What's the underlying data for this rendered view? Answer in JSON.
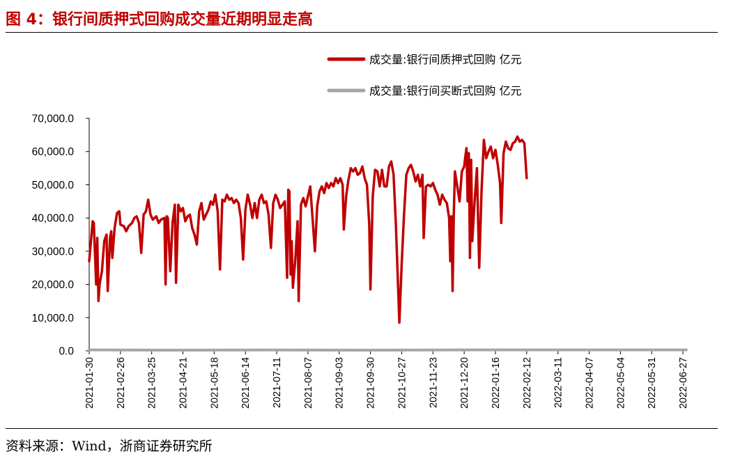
{
  "title": "图 4：银行间质押式回购成交量近期明显走高",
  "source": "资料来源：Wind，浙商证券研究所",
  "chart_data": {
    "type": "line",
    "ylim": [
      0,
      70000
    ],
    "yticks": [
      0,
      10000,
      20000,
      30000,
      40000,
      50000,
      60000,
      70000
    ],
    "ytick_labels": [
      "0.0",
      "10,000.0",
      "20,000.0",
      "30,000.0",
      "40,000.0",
      "50,000.0",
      "60,000.0",
      "70,000.0"
    ],
    "xlim": [
      "2021-01-30",
      "2022-06-30"
    ],
    "xtick_labels": [
      "2021-01-30",
      "2021-02-26",
      "2021-03-25",
      "2021-04-21",
      "2021-05-18",
      "2021-06-14",
      "2021-07-11",
      "2021-08-07",
      "2021-09-03",
      "2021-09-30",
      "2021-10-27",
      "2021-11-23",
      "2021-12-20",
      "2022-01-16",
      "2022-02-12",
      "2022-03-11",
      "2022-04-07",
      "2022-05-04",
      "2022-05-31",
      "2022-06-27"
    ],
    "legend_position": "top-right",
    "series": [
      {
        "name": "成交量:银行间质押式回购 亿元",
        "color": "#c00000",
        "points": [
          [
            "2021-01-30",
            27000
          ],
          [
            "2021-02-02",
            39000
          ],
          [
            "2021-02-03",
            38500
          ],
          [
            "2021-02-05",
            20000
          ],
          [
            "2021-02-06",
            34000
          ],
          [
            "2021-02-07",
            15000
          ],
          [
            "2021-02-08",
            20000
          ],
          [
            "2021-02-10",
            24000
          ],
          [
            "2021-02-12",
            33000
          ],
          [
            "2021-02-14",
            35000
          ],
          [
            "2021-02-15",
            18000
          ],
          [
            "2021-02-17",
            34000
          ],
          [
            "2021-02-18",
            36000
          ],
          [
            "2021-02-19",
            28000
          ],
          [
            "2021-02-21",
            37000
          ],
          [
            "2021-02-23",
            41500
          ],
          [
            "2021-02-25",
            42000
          ],
          [
            "2021-02-26",
            38000
          ],
          [
            "2021-03-01",
            37500
          ],
          [
            "2021-03-03",
            36000
          ],
          [
            "2021-03-05",
            37500
          ],
          [
            "2021-03-08",
            38500
          ],
          [
            "2021-03-10",
            40000
          ],
          [
            "2021-03-12",
            40500
          ],
          [
            "2021-03-14",
            38500
          ],
          [
            "2021-03-16",
            29500
          ],
          [
            "2021-03-18",
            41000
          ],
          [
            "2021-03-20",
            42000
          ],
          [
            "2021-03-22",
            45500
          ],
          [
            "2021-03-24",
            41000
          ],
          [
            "2021-03-26",
            39500
          ],
          [
            "2021-03-29",
            40500
          ],
          [
            "2021-03-31",
            38500
          ],
          [
            "2021-04-02",
            39500
          ],
          [
            "2021-04-05",
            40000
          ],
          [
            "2021-04-06",
            20000
          ],
          [
            "2021-04-07",
            40500
          ],
          [
            "2021-04-08",
            40000
          ],
          [
            "2021-04-10",
            24000
          ],
          [
            "2021-04-12",
            38500
          ],
          [
            "2021-04-14",
            44000
          ],
          [
            "2021-04-15",
            20500
          ],
          [
            "2021-04-17",
            44000
          ],
          [
            "2021-04-19",
            42000
          ],
          [
            "2021-04-21",
            43000
          ],
          [
            "2021-04-23",
            39000
          ],
          [
            "2021-04-25",
            40500
          ],
          [
            "2021-04-27",
            41000
          ],
          [
            "2021-04-29",
            37000
          ],
          [
            "2021-05-01",
            35000
          ],
          [
            "2021-05-03",
            32000
          ],
          [
            "2021-05-05",
            42000
          ],
          [
            "2021-05-07",
            44500
          ],
          [
            "2021-05-09",
            39500
          ],
          [
            "2021-05-11",
            41000
          ],
          [
            "2021-05-13",
            42500
          ],
          [
            "2021-05-15",
            45000
          ],
          [
            "2021-05-17",
            44000
          ],
          [
            "2021-05-19",
            47000
          ],
          [
            "2021-05-21",
            42000
          ],
          [
            "2021-05-23",
            24500
          ],
          [
            "2021-05-25",
            45500
          ],
          [
            "2021-05-27",
            45000
          ],
          [
            "2021-05-29",
            47000
          ],
          [
            "2021-05-31",
            45500
          ],
          [
            "2021-06-02",
            46000
          ],
          [
            "2021-06-04",
            44500
          ],
          [
            "2021-06-06",
            45500
          ],
          [
            "2021-06-08",
            44500
          ],
          [
            "2021-06-10",
            40000
          ],
          [
            "2021-06-12",
            27500
          ],
          [
            "2021-06-14",
            42500
          ],
          [
            "2021-06-16",
            47000
          ],
          [
            "2021-06-18",
            44000
          ],
          [
            "2021-06-20",
            40000
          ],
          [
            "2021-06-22",
            44500
          ],
          [
            "2021-06-24",
            40000
          ],
          [
            "2021-06-26",
            45500
          ],
          [
            "2021-06-28",
            47000
          ],
          [
            "2021-06-30",
            44500
          ],
          [
            "2021-07-02",
            45000
          ],
          [
            "2021-07-04",
            41000
          ],
          [
            "2021-07-06",
            31000
          ],
          [
            "2021-07-08",
            44500
          ],
          [
            "2021-07-10",
            47000
          ],
          [
            "2021-07-12",
            45500
          ],
          [
            "2021-07-14",
            43000
          ],
          [
            "2021-07-16",
            44000
          ],
          [
            "2021-07-18",
            45000
          ],
          [
            "2021-07-20",
            22000
          ],
          [
            "2021-07-21",
            48500
          ],
          [
            "2021-07-22",
            48000
          ],
          [
            "2021-07-23",
            23000
          ],
          [
            "2021-07-24",
            33000
          ],
          [
            "2021-07-25",
            19000
          ],
          [
            "2021-07-27",
            27000
          ],
          [
            "2021-07-29",
            39000
          ],
          [
            "2021-07-30",
            15000
          ],
          [
            "2021-08-01",
            44000
          ],
          [
            "2021-08-03",
            46000
          ],
          [
            "2021-08-05",
            43500
          ],
          [
            "2021-08-07",
            46500
          ],
          [
            "2021-08-09",
            49500
          ],
          [
            "2021-08-11",
            40000
          ],
          [
            "2021-08-13",
            30000
          ],
          [
            "2021-08-15",
            43500
          ],
          [
            "2021-08-17",
            48000
          ],
          [
            "2021-08-19",
            49500
          ],
          [
            "2021-08-21",
            47500
          ],
          [
            "2021-08-23",
            50500
          ],
          [
            "2021-08-25",
            49000
          ],
          [
            "2021-08-27",
            50500
          ],
          [
            "2021-08-29",
            49500
          ],
          [
            "2021-08-31",
            52000
          ],
          [
            "2021-09-02",
            50500
          ],
          [
            "2021-09-04",
            52000
          ],
          [
            "2021-09-06",
            50000
          ],
          [
            "2021-09-07",
            36500
          ],
          [
            "2021-09-09",
            46500
          ],
          [
            "2021-09-11",
            51500
          ],
          [
            "2021-09-13",
            55000
          ],
          [
            "2021-09-15",
            54000
          ],
          [
            "2021-09-17",
            55000
          ],
          [
            "2021-09-19",
            53000
          ],
          [
            "2021-09-21",
            53500
          ],
          [
            "2021-09-23",
            55500
          ],
          [
            "2021-09-25",
            52000
          ],
          [
            "2021-09-27",
            50000
          ],
          [
            "2021-09-29",
            38000
          ],
          [
            "2021-09-30",
            18500
          ],
          [
            "2021-10-02",
            46500
          ],
          [
            "2021-10-04",
            54500
          ],
          [
            "2021-10-06",
            54000
          ],
          [
            "2021-10-08",
            49500
          ],
          [
            "2021-10-10",
            54500
          ],
          [
            "2021-10-12",
            49500
          ],
          [
            "2021-10-14",
            49500
          ],
          [
            "2021-10-16",
            55500
          ],
          [
            "2021-10-18",
            57000
          ],
          [
            "2021-10-20",
            53000
          ],
          [
            "2021-10-22",
            38000
          ],
          [
            "2021-10-25",
            8500
          ],
          [
            "2021-10-27",
            26000
          ],
          [
            "2021-10-29",
            41000
          ],
          [
            "2021-10-31",
            53000
          ],
          [
            "2021-11-02",
            55000
          ],
          [
            "2021-11-04",
            56000
          ],
          [
            "2021-11-06",
            54000
          ],
          [
            "2021-11-08",
            51000
          ],
          [
            "2021-11-10",
            53000
          ],
          [
            "2021-11-12",
            49500
          ],
          [
            "2021-11-14",
            53000
          ],
          [
            "2021-11-15",
            34000
          ],
          [
            "2021-11-17",
            49500
          ],
          [
            "2021-11-19",
            50000
          ],
          [
            "2021-11-21",
            49500
          ],
          [
            "2021-11-23",
            50500
          ],
          [
            "2021-11-25",
            48500
          ],
          [
            "2021-11-27",
            47000
          ],
          [
            "2021-11-29",
            44000
          ],
          [
            "2021-12-01",
            47000
          ],
          [
            "2021-12-03",
            45500
          ],
          [
            "2021-12-05",
            44500
          ],
          [
            "2021-12-07",
            40000
          ],
          [
            "2021-12-08",
            27000
          ],
          [
            "2021-12-09",
            40500
          ],
          [
            "2021-12-10",
            18000
          ],
          [
            "2021-12-11",
            41000
          ],
          [
            "2021-12-12",
            54000
          ],
          [
            "2021-12-14",
            49500
          ],
          [
            "2021-12-16",
            45000
          ],
          [
            "2021-12-18",
            54000
          ],
          [
            "2021-12-20",
            55500
          ],
          [
            "2021-12-21",
            58500
          ],
          [
            "2021-12-22",
            61000
          ],
          [
            "2021-12-23",
            45000
          ],
          [
            "2021-12-24",
            59500
          ],
          [
            "2021-12-25",
            28000
          ],
          [
            "2021-12-26",
            57500
          ],
          [
            "2021-12-27",
            33000
          ],
          [
            "2021-12-29",
            45000
          ],
          [
            "2021-12-31",
            55000
          ],
          [
            "2022-01-02",
            25000
          ],
          [
            "2022-01-04",
            48000
          ],
          [
            "2022-01-06",
            63500
          ],
          [
            "2022-01-08",
            58000
          ],
          [
            "2022-01-10",
            60000
          ],
          [
            "2022-01-12",
            61500
          ],
          [
            "2022-01-14",
            58000
          ],
          [
            "2022-01-16",
            60500
          ],
          [
            "2022-01-18",
            56000
          ],
          [
            "2022-01-20",
            50500
          ],
          [
            "2022-01-21",
            38500
          ],
          [
            "2022-01-23",
            59500
          ],
          [
            "2022-01-25",
            63000
          ],
          [
            "2022-01-27",
            61000
          ],
          [
            "2022-01-29",
            60500
          ],
          [
            "2022-01-31",
            62500
          ],
          [
            "2022-02-02",
            63000
          ],
          [
            "2022-02-04",
            64500
          ],
          [
            "2022-02-06",
            63000
          ],
          [
            "2022-02-08",
            63500
          ],
          [
            "2022-02-10",
            62500
          ],
          [
            "2022-02-12",
            52000
          ]
        ]
      },
      {
        "name": "成交量:银行间买断式回购 亿元",
        "color": "#a6a6a6",
        "points": [
          [
            "2021-01-30",
            300
          ],
          [
            "2021-04-01",
            200
          ],
          [
            "2021-07-01",
            250
          ],
          [
            "2021-10-01",
            200
          ],
          [
            "2022-01-01",
            300
          ],
          [
            "2022-06-30",
            300
          ]
        ]
      }
    ]
  }
}
